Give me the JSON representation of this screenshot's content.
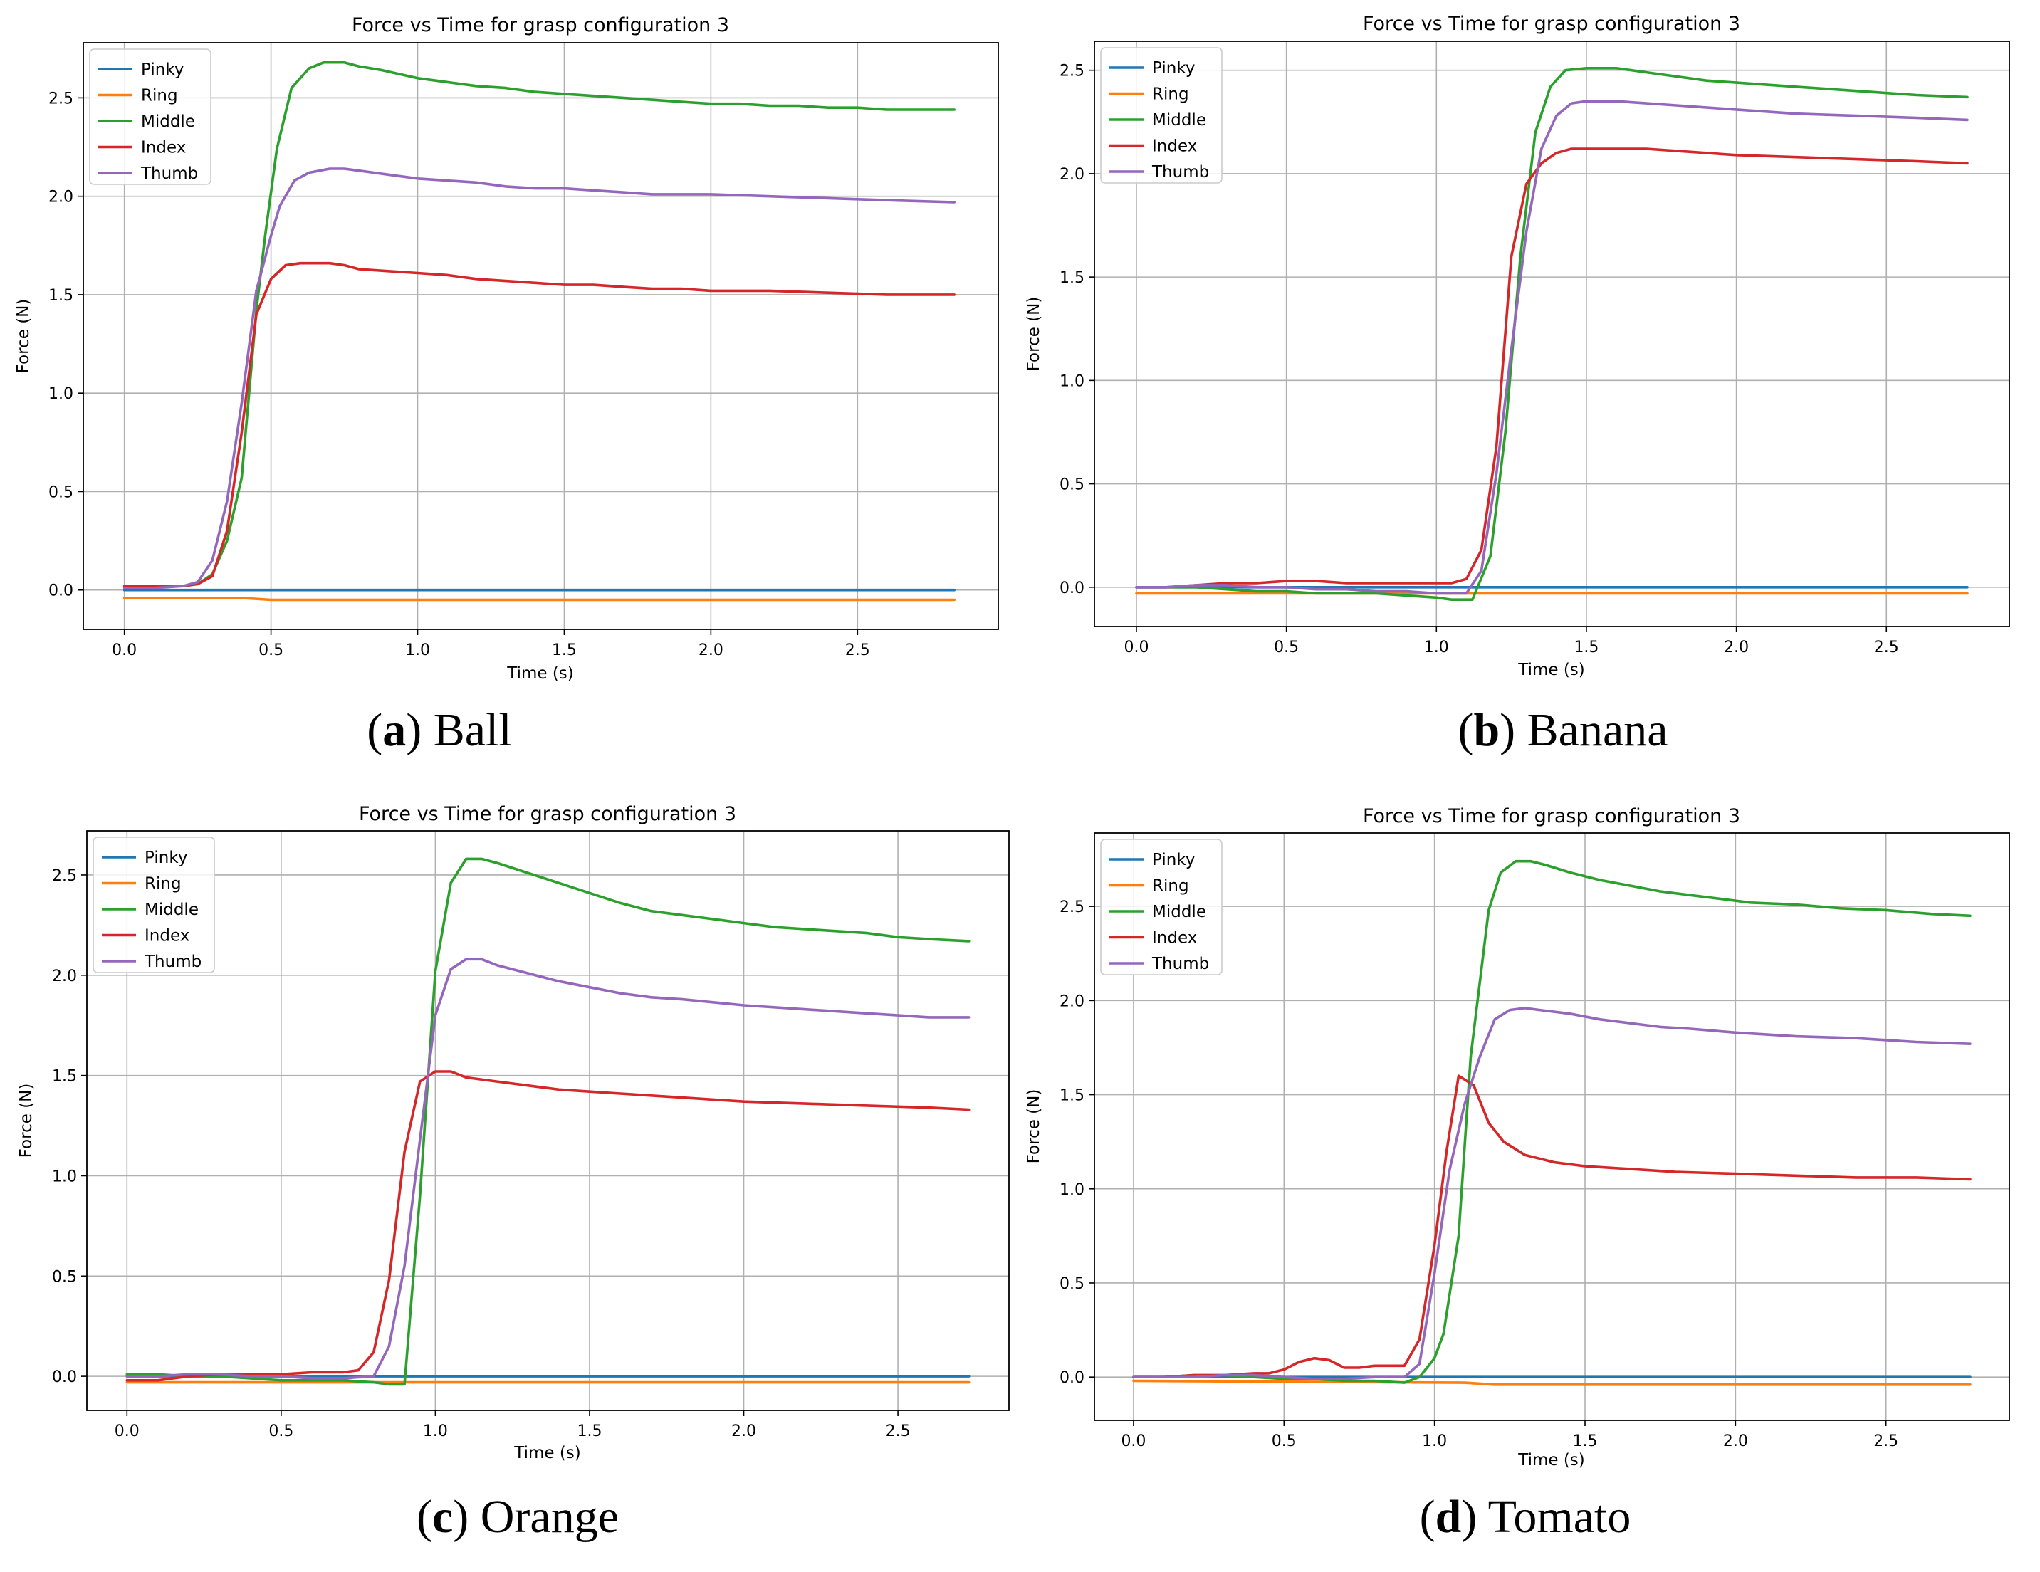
{
  "figure": {
    "background": "#ffffff"
  },
  "chart_data": [
    {
      "id": "a",
      "type": "line",
      "title": "Force vs Time for grasp configuration 3",
      "xlabel": "Time (s)",
      "ylabel": "Force (N)",
      "xlim": [
        -0.14,
        2.98
      ],
      "ylim": [
        -0.2,
        2.78
      ],
      "xticks": [
        0.0,
        0.5,
        1.0,
        1.5,
        2.0,
        2.5
      ],
      "yticks": [
        0.0,
        0.5,
        1.0,
        1.5,
        2.0,
        2.5
      ],
      "xtick_labels": [
        "0.0",
        "0.5",
        "1.0",
        "1.5",
        "2.0",
        "2.5"
      ],
      "ytick_labels": [
        "0.0",
        "0.5",
        "1.0",
        "1.5",
        "2.0",
        "2.5"
      ],
      "grid": true,
      "legend_position": "top-left",
      "caption": {
        "letter": "a",
        "text": "Ball"
      },
      "series": [
        {
          "name": "Pinky",
          "color": "#1f77b4",
          "x": [
            0.0,
            2.83
          ],
          "y": [
            0.0,
            0.0
          ]
        },
        {
          "name": "Ring",
          "color": "#ff7f0e",
          "x": [
            0.0,
            0.4,
            0.5,
            2.83
          ],
          "y": [
            -0.04,
            -0.04,
            -0.05,
            -0.05
          ]
        },
        {
          "name": "Middle",
          "color": "#2ca02c",
          "x": [
            0.0,
            0.1,
            0.2,
            0.25,
            0.3,
            0.35,
            0.4,
            0.45,
            0.48,
            0.52,
            0.57,
            0.63,
            0.68,
            0.75,
            0.8,
            0.88,
            1.0,
            1.1,
            1.2,
            1.3,
            1.4,
            1.5,
            1.6,
            1.7,
            1.8,
            1.9,
            2.0,
            2.1,
            2.2,
            2.3,
            2.4,
            2.5,
            2.6,
            2.7,
            2.83
          ],
          "y": [
            0.02,
            0.02,
            0.02,
            0.03,
            0.08,
            0.25,
            0.57,
            1.42,
            1.8,
            2.24,
            2.55,
            2.65,
            2.68,
            2.68,
            2.66,
            2.64,
            2.6,
            2.58,
            2.56,
            2.55,
            2.53,
            2.52,
            2.51,
            2.5,
            2.49,
            2.48,
            2.47,
            2.47,
            2.46,
            2.46,
            2.45,
            2.45,
            2.44,
            2.44,
            2.44
          ]
        },
        {
          "name": "Index",
          "color": "#d62728",
          "x": [
            0.0,
            0.1,
            0.2,
            0.25,
            0.3,
            0.35,
            0.4,
            0.45,
            0.5,
            0.55,
            0.6,
            0.7,
            0.75,
            0.8,
            0.9,
            1.0,
            1.1,
            1.2,
            1.3,
            1.4,
            1.5,
            1.6,
            1.7,
            1.8,
            1.9,
            2.0,
            2.2,
            2.4,
            2.6,
            2.83
          ],
          "y": [
            0.02,
            0.02,
            0.02,
            0.03,
            0.07,
            0.3,
            0.8,
            1.4,
            1.58,
            1.65,
            1.66,
            1.66,
            1.65,
            1.63,
            1.62,
            1.61,
            1.6,
            1.58,
            1.57,
            1.56,
            1.55,
            1.55,
            1.54,
            1.53,
            1.53,
            1.52,
            1.52,
            1.51,
            1.5,
            1.5
          ]
        },
        {
          "name": "Thumb",
          "color": "#9467bd",
          "x": [
            0.0,
            0.1,
            0.2,
            0.25,
            0.3,
            0.35,
            0.4,
            0.45,
            0.5,
            0.53,
            0.58,
            0.63,
            0.7,
            0.75,
            0.8,
            0.9,
            1.0,
            1.1,
            1.2,
            1.3,
            1.4,
            1.5,
            1.6,
            1.7,
            1.8,
            2.0,
            2.2,
            2.4,
            2.6,
            2.83
          ],
          "y": [
            0.01,
            0.01,
            0.02,
            0.04,
            0.15,
            0.45,
            0.95,
            1.52,
            1.8,
            1.95,
            2.08,
            2.12,
            2.14,
            2.14,
            2.13,
            2.11,
            2.09,
            2.08,
            2.07,
            2.05,
            2.04,
            2.04,
            2.03,
            2.02,
            2.01,
            2.01,
            2.0,
            1.99,
            1.98,
            1.97
          ]
        }
      ]
    },
    {
      "id": "b",
      "type": "line",
      "title": "Force vs Time for grasp configuration 3",
      "xlabel": "Time (s)",
      "ylabel": "Force (N)",
      "xlim": [
        -0.14,
        2.91
      ],
      "ylim": [
        -0.19,
        2.64
      ],
      "xticks": [
        0.0,
        0.5,
        1.0,
        1.5,
        2.0,
        2.5
      ],
      "yticks": [
        0.0,
        0.5,
        1.0,
        1.5,
        2.0,
        2.5
      ],
      "xtick_labels": [
        "0.0",
        "0.5",
        "1.0",
        "1.5",
        "2.0",
        "2.5"
      ],
      "ytick_labels": [
        "0.0",
        "0.5",
        "1.0",
        "1.5",
        "2.0",
        "2.5"
      ],
      "grid": true,
      "legend_position": "top-left",
      "caption": {
        "letter": "b",
        "text": "Banana"
      },
      "series": [
        {
          "name": "Pinky",
          "color": "#1f77b4",
          "x": [
            0.0,
            2.77
          ],
          "y": [
            0.0,
            0.0
          ]
        },
        {
          "name": "Ring",
          "color": "#ff7f0e",
          "x": [
            0.0,
            2.77
          ],
          "y": [
            -0.03,
            -0.03
          ]
        },
        {
          "name": "Middle",
          "color": "#2ca02c",
          "x": [
            0.0,
            0.1,
            0.2,
            0.3,
            0.4,
            0.5,
            0.6,
            0.7,
            0.8,
            0.9,
            1.0,
            1.05,
            1.12,
            1.18,
            1.23,
            1.28,
            1.33,
            1.38,
            1.43,
            1.5,
            1.55,
            1.6,
            1.7,
            1.8,
            1.9,
            2.0,
            2.2,
            2.4,
            2.6,
            2.77
          ],
          "y": [
            0.0,
            0.0,
            0.0,
            -0.01,
            -0.02,
            -0.02,
            -0.03,
            -0.03,
            -0.03,
            -0.04,
            -0.05,
            -0.06,
            -0.06,
            0.15,
            0.75,
            1.6,
            2.2,
            2.42,
            2.5,
            2.51,
            2.51,
            2.51,
            2.49,
            2.47,
            2.45,
            2.44,
            2.42,
            2.4,
            2.38,
            2.37
          ]
        },
        {
          "name": "Index",
          "color": "#d62728",
          "x": [
            0.0,
            0.1,
            0.2,
            0.3,
            0.4,
            0.5,
            0.6,
            0.7,
            0.8,
            0.9,
            1.0,
            1.05,
            1.1,
            1.15,
            1.2,
            1.25,
            1.3,
            1.35,
            1.4,
            1.45,
            1.5,
            1.6,
            1.7,
            1.8,
            2.0,
            2.2,
            2.4,
            2.6,
            2.77
          ],
          "y": [
            0.0,
            0.0,
            0.01,
            0.02,
            0.02,
            0.03,
            0.03,
            0.02,
            0.02,
            0.02,
            0.02,
            0.02,
            0.04,
            0.18,
            0.68,
            1.6,
            1.95,
            2.05,
            2.1,
            2.12,
            2.12,
            2.12,
            2.12,
            2.11,
            2.09,
            2.08,
            2.07,
            2.06,
            2.05
          ]
        },
        {
          "name": "Thumb",
          "color": "#9467bd",
          "x": [
            0.0,
            0.1,
            0.2,
            0.3,
            0.4,
            0.5,
            0.6,
            0.7,
            0.8,
            0.9,
            1.0,
            1.05,
            1.1,
            1.15,
            1.2,
            1.25,
            1.3,
            1.35,
            1.4,
            1.45,
            1.5,
            1.6,
            1.7,
            1.8,
            2.0,
            2.2,
            2.4,
            2.6,
            2.77
          ],
          "y": [
            0.0,
            0.0,
            0.01,
            0.01,
            0.0,
            0.0,
            -0.01,
            -0.01,
            -0.02,
            -0.02,
            -0.03,
            -0.03,
            -0.03,
            0.08,
            0.55,
            1.15,
            1.72,
            2.12,
            2.28,
            2.34,
            2.35,
            2.35,
            2.34,
            2.33,
            2.31,
            2.29,
            2.28,
            2.27,
            2.26
          ]
        }
      ]
    },
    {
      "id": "c",
      "type": "line",
      "title": "Force vs Time for grasp configuration 3",
      "xlabel": "Time (s)",
      "ylabel": "Force (N)",
      "xlim": [
        -0.13,
        2.86
      ],
      "ylim": [
        -0.17,
        2.72
      ],
      "xticks": [
        0.0,
        0.5,
        1.0,
        1.5,
        2.0,
        2.5
      ],
      "yticks": [
        0.0,
        0.5,
        1.0,
        1.5,
        2.0,
        2.5
      ],
      "xtick_labels": [
        "0.0",
        "0.5",
        "1.0",
        "1.5",
        "2.0",
        "2.5"
      ],
      "ytick_labels": [
        "0.0",
        "0.5",
        "1.0",
        "1.5",
        "2.0",
        "2.5"
      ],
      "grid": true,
      "legend_position": "top-left",
      "caption": {
        "letter": "c",
        "text": "Orange"
      },
      "series": [
        {
          "name": "Pinky",
          "color": "#1f77b4",
          "x": [
            0.0,
            2.73
          ],
          "y": [
            0.0,
            0.0
          ]
        },
        {
          "name": "Ring",
          "color": "#ff7f0e",
          "x": [
            0.0,
            2.73
          ],
          "y": [
            -0.03,
            -0.03
          ]
        },
        {
          "name": "Middle",
          "color": "#2ca02c",
          "x": [
            0.0,
            0.1,
            0.2,
            0.3,
            0.4,
            0.5,
            0.6,
            0.7,
            0.8,
            0.85,
            0.9,
            0.95,
            1.0,
            1.05,
            1.1,
            1.15,
            1.2,
            1.3,
            1.4,
            1.5,
            1.6,
            1.7,
            1.8,
            1.9,
            2.0,
            2.1,
            2.2,
            2.3,
            2.4,
            2.5,
            2.6,
            2.73
          ],
          "y": [
            0.01,
            0.01,
            0.0,
            0.0,
            -0.01,
            -0.02,
            -0.02,
            -0.02,
            -0.03,
            -0.04,
            -0.04,
            0.9,
            2.02,
            2.46,
            2.58,
            2.58,
            2.56,
            2.51,
            2.46,
            2.41,
            2.36,
            2.32,
            2.3,
            2.28,
            2.26,
            2.24,
            2.23,
            2.22,
            2.21,
            2.19,
            2.18,
            2.17
          ]
        },
        {
          "name": "Index",
          "color": "#d62728",
          "x": [
            0.0,
            0.1,
            0.2,
            0.3,
            0.4,
            0.5,
            0.6,
            0.7,
            0.75,
            0.8,
            0.85,
            0.9,
            0.95,
            1.0,
            1.05,
            1.1,
            1.2,
            1.3,
            1.4,
            1.5,
            1.6,
            1.7,
            1.8,
            2.0,
            2.2,
            2.4,
            2.6,
            2.73
          ],
          "y": [
            -0.02,
            -0.02,
            0.0,
            0.01,
            0.01,
            0.01,
            0.02,
            0.02,
            0.03,
            0.12,
            0.48,
            1.12,
            1.47,
            1.52,
            1.52,
            1.49,
            1.47,
            1.45,
            1.43,
            1.42,
            1.41,
            1.4,
            1.39,
            1.37,
            1.36,
            1.35,
            1.34,
            1.33
          ]
        },
        {
          "name": "Thumb",
          "color": "#9467bd",
          "x": [
            0.0,
            0.1,
            0.2,
            0.3,
            0.4,
            0.5,
            0.6,
            0.7,
            0.8,
            0.85,
            0.9,
            0.95,
            1.0,
            1.05,
            1.1,
            1.15,
            1.2,
            1.3,
            1.4,
            1.5,
            1.6,
            1.7,
            1.8,
            2.0,
            2.2,
            2.4,
            2.6,
            2.73
          ],
          "y": [
            0.0,
            0.0,
            0.01,
            0.01,
            0.0,
            0.0,
            -0.01,
            -0.01,
            0.0,
            0.15,
            0.55,
            1.18,
            1.8,
            2.03,
            2.08,
            2.08,
            2.05,
            2.01,
            1.97,
            1.94,
            1.91,
            1.89,
            1.88,
            1.85,
            1.83,
            1.81,
            1.79,
            1.79
          ]
        }
      ]
    },
    {
      "id": "d",
      "type": "line",
      "title": "Force vs Time for grasp configuration 3",
      "xlabel": "Time (s)",
      "ylabel": "Force (N)",
      "xlim": [
        -0.13,
        2.91
      ],
      "ylim": [
        -0.23,
        2.89
      ],
      "xticks": [
        0.0,
        0.5,
        1.0,
        1.5,
        2.0,
        2.5
      ],
      "yticks": [
        0.0,
        0.5,
        1.0,
        1.5,
        2.0,
        2.5
      ],
      "xtick_labels": [
        "0.0",
        "0.5",
        "1.0",
        "1.5",
        "2.0",
        "2.5"
      ],
      "ytick_labels": [
        "0.0",
        "0.5",
        "1.0",
        "1.5",
        "2.0",
        "2.5"
      ],
      "grid": true,
      "legend_position": "top-left",
      "caption": {
        "letter": "d",
        "text": "Tomato"
      },
      "series": [
        {
          "name": "Pinky",
          "color": "#1f77b4",
          "x": [
            0.0,
            2.78
          ],
          "y": [
            0.0,
            0.0
          ]
        },
        {
          "name": "Ring",
          "color": "#ff7f0e",
          "x": [
            0.0,
            1.1,
            1.2,
            2.78
          ],
          "y": [
            -0.02,
            -0.03,
            -0.04,
            -0.04
          ]
        },
        {
          "name": "Middle",
          "color": "#2ca02c",
          "x": [
            0.0,
            0.1,
            0.2,
            0.3,
            0.4,
            0.5,
            0.6,
            0.7,
            0.8,
            0.9,
            0.95,
            1.0,
            1.03,
            1.08,
            1.12,
            1.18,
            1.22,
            1.27,
            1.32,
            1.37,
            1.45,
            1.55,
            1.65,
            1.75,
            1.85,
            1.95,
            2.05,
            2.2,
            2.35,
            2.5,
            2.65,
            2.78
          ],
          "y": [
            0.0,
            0.0,
            0.01,
            0.01,
            0.0,
            -0.01,
            -0.01,
            -0.02,
            -0.02,
            -0.03,
            0.0,
            0.1,
            0.23,
            0.75,
            1.7,
            2.48,
            2.68,
            2.74,
            2.74,
            2.72,
            2.68,
            2.64,
            2.61,
            2.58,
            2.56,
            2.54,
            2.52,
            2.51,
            2.49,
            2.48,
            2.46,
            2.45
          ]
        },
        {
          "name": "Index",
          "color": "#d62728",
          "x": [
            0.0,
            0.1,
            0.2,
            0.3,
            0.4,
            0.45,
            0.5,
            0.55,
            0.6,
            0.65,
            0.7,
            0.75,
            0.8,
            0.85,
            0.9,
            0.95,
            1.0,
            1.04,
            1.08,
            1.13,
            1.18,
            1.23,
            1.3,
            1.4,
            1.5,
            1.6,
            1.7,
            1.8,
            2.0,
            2.2,
            2.4,
            2.6,
            2.78
          ],
          "y": [
            0.0,
            0.0,
            0.01,
            0.01,
            0.02,
            0.02,
            0.04,
            0.08,
            0.1,
            0.09,
            0.05,
            0.05,
            0.06,
            0.06,
            0.06,
            0.2,
            0.7,
            1.2,
            1.6,
            1.55,
            1.35,
            1.25,
            1.18,
            1.14,
            1.12,
            1.11,
            1.1,
            1.09,
            1.08,
            1.07,
            1.06,
            1.06,
            1.05
          ]
        },
        {
          "name": "Thumb",
          "color": "#9467bd",
          "x": [
            0.0,
            0.1,
            0.2,
            0.3,
            0.4,
            0.5,
            0.6,
            0.7,
            0.8,
            0.9,
            0.95,
            1.0,
            1.05,
            1.1,
            1.15,
            1.2,
            1.25,
            1.3,
            1.35,
            1.45,
            1.55,
            1.65,
            1.75,
            1.85,
            2.0,
            2.2,
            2.4,
            2.6,
            2.78
          ],
          "y": [
            0.0,
            0.0,
            0.0,
            0.01,
            0.01,
            0.0,
            -0.01,
            -0.01,
            0.0,
            0.0,
            0.07,
            0.55,
            1.1,
            1.45,
            1.7,
            1.9,
            1.95,
            1.96,
            1.95,
            1.93,
            1.9,
            1.88,
            1.86,
            1.85,
            1.83,
            1.81,
            1.8,
            1.78,
            1.77
          ]
        }
      ]
    }
  ]
}
